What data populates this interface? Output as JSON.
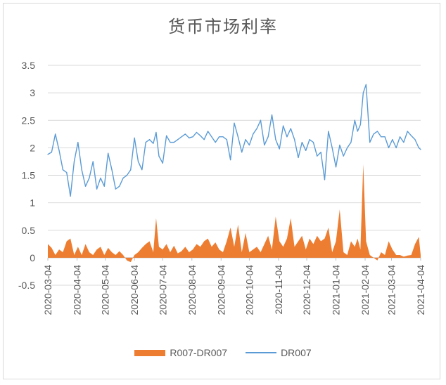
{
  "chart_data": {
    "type": "line",
    "title": "货币市场利率",
    "ylim": [
      -0.5,
      3.5
    ],
    "y_ticks": [
      "3.5",
      "3",
      "2.5",
      "2",
      "1.5",
      "1",
      "0.5",
      "0",
      "-0.5"
    ],
    "x_ticks": [
      "2020-03-04",
      "2020-04-04",
      "2020-05-04",
      "2020-06-04",
      "2020-07-04",
      "2020-08-04",
      "2020-09-04",
      "2020-10-04",
      "2020-11-04",
      "2020-12-04",
      "2021-01-04",
      "2021-02-04",
      "2021-03-04",
      "2021-04-04"
    ],
    "x_range": [
      "2020-03-04",
      "2021-04-04"
    ],
    "legend_position": "bottom",
    "series": [
      {
        "name": "R007-DR007",
        "kind": "area",
        "color": "#ed7d31",
        "x": [
          "2020-03-04",
          "2020-03-08",
          "2020-03-12",
          "2020-03-16",
          "2020-03-20",
          "2020-03-24",
          "2020-03-28",
          "2020-04-01",
          "2020-04-05",
          "2020-04-09",
          "2020-04-13",
          "2020-04-17",
          "2020-04-21",
          "2020-04-25",
          "2020-04-29",
          "2020-05-03",
          "2020-05-07",
          "2020-05-11",
          "2020-05-15",
          "2020-05-19",
          "2020-05-23",
          "2020-05-27",
          "2020-05-31",
          "2020-06-04",
          "2020-06-08",
          "2020-06-12",
          "2020-06-16",
          "2020-06-20",
          "2020-06-24",
          "2020-06-27",
          "2020-06-30",
          "2020-07-04",
          "2020-07-08",
          "2020-07-12",
          "2020-07-16",
          "2020-07-20",
          "2020-07-24",
          "2020-07-28",
          "2020-08-01",
          "2020-08-05",
          "2020-08-09",
          "2020-08-13",
          "2020-08-17",
          "2020-08-21",
          "2020-08-25",
          "2020-08-29",
          "2020-09-02",
          "2020-09-06",
          "2020-09-10",
          "2020-09-14",
          "2020-09-18",
          "2020-09-22",
          "2020-09-26",
          "2020-09-30",
          "2020-10-04",
          "2020-10-08",
          "2020-10-12",
          "2020-10-16",
          "2020-10-20",
          "2020-10-24",
          "2020-10-28",
          "2020-11-01",
          "2020-11-05",
          "2020-11-09",
          "2020-11-13",
          "2020-11-17",
          "2020-11-21",
          "2020-11-25",
          "2020-11-29",
          "2020-12-03",
          "2020-12-07",
          "2020-12-11",
          "2020-12-15",
          "2020-12-19",
          "2020-12-23",
          "2020-12-27",
          "2020-12-31",
          "2021-01-04",
          "2021-01-08",
          "2021-01-12",
          "2021-01-16",
          "2021-01-20",
          "2021-01-24",
          "2021-01-27",
          "2021-01-30",
          "2021-02-02",
          "2021-02-05",
          "2021-02-09",
          "2021-02-13",
          "2021-02-17",
          "2021-02-21",
          "2021-02-25",
          "2021-03-01",
          "2021-03-05",
          "2021-03-09",
          "2021-03-13",
          "2021-03-17",
          "2021-03-21",
          "2021-03-25",
          "2021-03-29",
          "2021-04-02",
          "2021-04-04"
        ],
        "values": [
          0.25,
          0.18,
          0.05,
          0.15,
          0.1,
          0.3,
          0.35,
          0.05,
          0.2,
          0.05,
          0.25,
          0.1,
          0.05,
          0.15,
          0.2,
          0.05,
          0.18,
          0.1,
          0.05,
          0.12,
          0.05,
          -0.05,
          -0.08,
          0.05,
          0.1,
          0.18,
          0.25,
          0.3,
          0.1,
          0.72,
          0.2,
          0.15,
          0.25,
          0.1,
          0.22,
          0.08,
          0.12,
          0.2,
          0.1,
          0.15,
          0.25,
          0.2,
          0.3,
          0.35,
          0.2,
          0.28,
          0.15,
          0.1,
          0.3,
          0.55,
          0.2,
          0.6,
          0.1,
          0.45,
          0.1,
          0.15,
          0.2,
          0.1,
          0.25,
          0.4,
          0.15,
          0.75,
          0.3,
          0.2,
          0.35,
          0.72,
          0.2,
          0.3,
          0.4,
          0.15,
          0.35,
          0.25,
          0.4,
          0.3,
          0.35,
          0.55,
          0.1,
          0.3,
          0.88,
          0.1,
          0.05,
          0.3,
          0.2,
          0.35,
          0.15,
          1.7,
          0.3,
          0.05,
          0.0,
          -0.05,
          0.1,
          0.05,
          0.3,
          0.15,
          0.05,
          0.05,
          0.02,
          0.04,
          0.05,
          0.25,
          0.38,
          0.05
        ]
      },
      {
        "name": "DR007",
        "kind": "line",
        "color": "#5b9bd5",
        "x": [
          "2020-03-04",
          "2020-03-08",
          "2020-03-12",
          "2020-03-16",
          "2020-03-20",
          "2020-03-24",
          "2020-03-28",
          "2020-04-01",
          "2020-04-05",
          "2020-04-09",
          "2020-04-13",
          "2020-04-17",
          "2020-04-21",
          "2020-04-25",
          "2020-04-29",
          "2020-05-03",
          "2020-05-07",
          "2020-05-11",
          "2020-05-15",
          "2020-05-19",
          "2020-05-23",
          "2020-05-27",
          "2020-05-31",
          "2020-06-04",
          "2020-06-08",
          "2020-06-12",
          "2020-06-16",
          "2020-06-20",
          "2020-06-24",
          "2020-06-27",
          "2020-06-30",
          "2020-07-04",
          "2020-07-08",
          "2020-07-12",
          "2020-07-16",
          "2020-07-20",
          "2020-07-24",
          "2020-07-28",
          "2020-08-01",
          "2020-08-05",
          "2020-08-09",
          "2020-08-13",
          "2020-08-17",
          "2020-08-21",
          "2020-08-25",
          "2020-08-29",
          "2020-09-02",
          "2020-09-06",
          "2020-09-10",
          "2020-09-14",
          "2020-09-18",
          "2020-09-22",
          "2020-09-26",
          "2020-09-30",
          "2020-10-04",
          "2020-10-08",
          "2020-10-12",
          "2020-10-16",
          "2020-10-20",
          "2020-10-24",
          "2020-10-28",
          "2020-11-01",
          "2020-11-05",
          "2020-11-09",
          "2020-11-13",
          "2020-11-17",
          "2020-11-21",
          "2020-11-25",
          "2020-11-29",
          "2020-12-03",
          "2020-12-07",
          "2020-12-11",
          "2020-12-15",
          "2020-12-19",
          "2020-12-23",
          "2020-12-27",
          "2020-12-31",
          "2021-01-04",
          "2021-01-08",
          "2021-01-12",
          "2021-01-16",
          "2021-01-20",
          "2021-01-24",
          "2021-01-27",
          "2021-01-30",
          "2021-02-02",
          "2021-02-05",
          "2021-02-09",
          "2021-02-13",
          "2021-02-17",
          "2021-02-21",
          "2021-02-25",
          "2021-03-01",
          "2021-03-05",
          "2021-03-09",
          "2021-03-13",
          "2021-03-17",
          "2021-03-21",
          "2021-03-25",
          "2021-03-29",
          "2021-04-02",
          "2021-04-04"
        ],
        "values": [
          1.88,
          1.92,
          2.25,
          1.95,
          1.6,
          1.55,
          1.12,
          1.75,
          2.1,
          1.6,
          1.3,
          1.45,
          1.75,
          1.25,
          1.45,
          1.3,
          1.9,
          1.6,
          1.25,
          1.3,
          1.45,
          1.5,
          1.6,
          2.18,
          1.75,
          1.6,
          2.1,
          2.15,
          2.08,
          2.28,
          1.85,
          1.72,
          2.22,
          2.1,
          2.1,
          2.15,
          2.2,
          2.25,
          2.18,
          2.2,
          2.28,
          2.22,
          2.15,
          2.3,
          2.2,
          2.1,
          2.2,
          2.2,
          2.15,
          1.78,
          2.45,
          2.2,
          1.92,
          2.15,
          2.05,
          2.25,
          2.35,
          2.5,
          2.05,
          2.2,
          2.6,
          2.15,
          1.98,
          2.4,
          2.2,
          2.35,
          2.15,
          1.82,
          2.1,
          1.95,
          2.15,
          2.1,
          1.85,
          1.92,
          1.42,
          2.3,
          2.0,
          1.65,
          2.05,
          1.85,
          2.0,
          2.1,
          2.5,
          2.3,
          2.42,
          3.0,
          3.15,
          2.1,
          2.25,
          2.3,
          2.2,
          2.2,
          2.0,
          2.15,
          2.0,
          2.2,
          2.1,
          2.3,
          2.22,
          2.15,
          2.0,
          1.97
        ]
      }
    ]
  }
}
